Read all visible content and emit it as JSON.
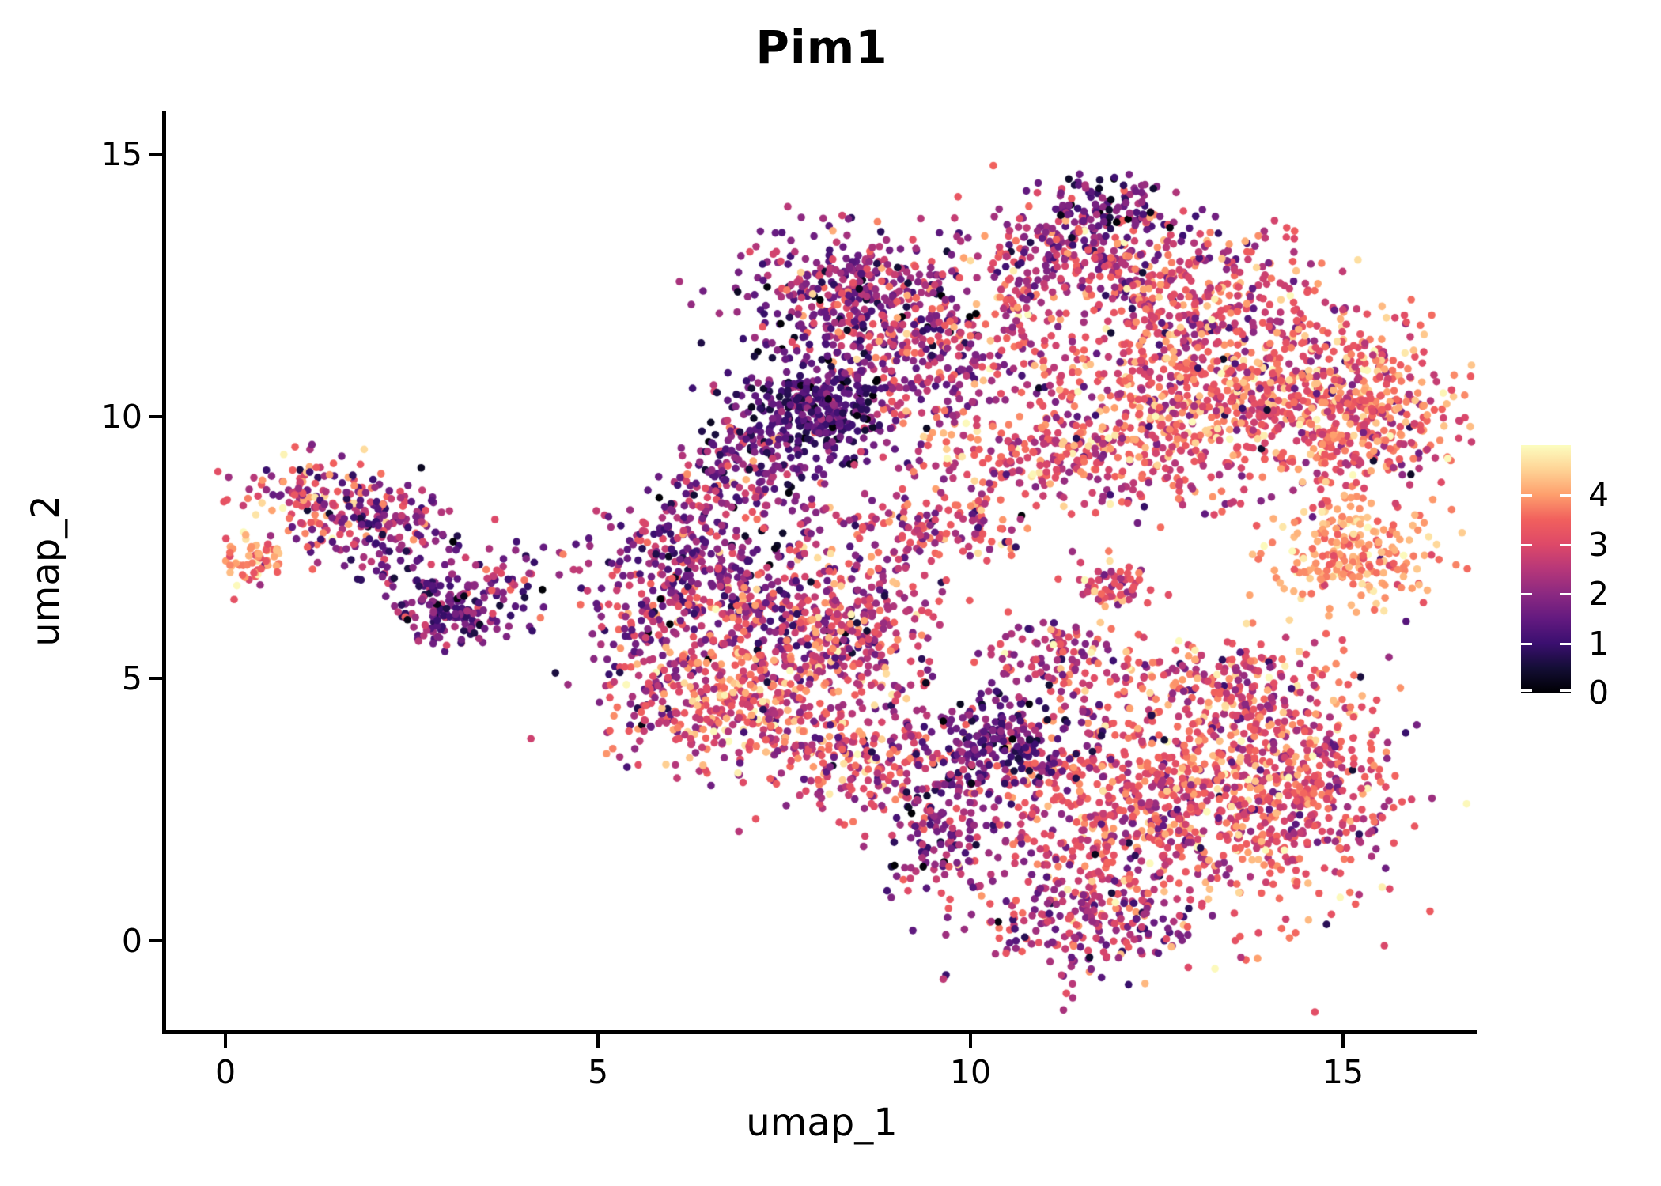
{
  "chart_data": {
    "type": "scatter",
    "title": "Pim1",
    "xlabel": "umap_1",
    "ylabel": "umap_2",
    "x_ticks": [
      0,
      5,
      10,
      15
    ],
    "y_ticks": [
      0,
      5,
      10,
      15
    ],
    "xlim": [
      -0.8,
      16.8
    ],
    "ylim": [
      -1.8,
      15.6
    ],
    "grid": false,
    "background": "#ffffff",
    "axis_color": "#000000",
    "text_color": "#000000",
    "point_radius_px": 4.8,
    "n_points_total": 7800,
    "seed": 20240601,
    "speckle_fraction": 0.035,
    "speckle_range": [
      0.3,
      4.3
    ],
    "colorbar": {
      "position": "right",
      "vmin": 0,
      "vmax": 5,
      "label_values": [
        0,
        1,
        2,
        3,
        4
      ],
      "colormap": "magma",
      "tick_color": "#ffffff",
      "stops": [
        [
          0.0,
          "#000004"
        ],
        [
          0.1,
          "#140e36"
        ],
        [
          0.2,
          "#3b0f70"
        ],
        [
          0.3,
          "#641a80"
        ],
        [
          0.4,
          "#8c2981"
        ],
        [
          0.5,
          "#b73779"
        ],
        [
          0.6,
          "#de4968"
        ],
        [
          0.7,
          "#f1605d"
        ],
        [
          0.8,
          "#fe9f6d"
        ],
        [
          0.9,
          "#fed395"
        ],
        [
          1.0,
          "#fcfdbf"
        ]
      ]
    },
    "clusters": [
      {
        "name": "left-island-upper-lobe",
        "cx": 1.25,
        "cy": 8.55,
        "sx": 0.5,
        "sy": 0.42,
        "n": 130,
        "mean": 3.0,
        "sd": 1.0
      },
      {
        "name": "left-island-mid",
        "cx": 2.2,
        "cy": 7.9,
        "sx": 0.55,
        "sy": 0.45,
        "n": 160,
        "mean": 1.9,
        "sd": 0.8
      },
      {
        "name": "left-island-orange-tip",
        "cx": 0.45,
        "cy": 7.3,
        "sx": 0.28,
        "sy": 0.25,
        "n": 60,
        "mean": 3.9,
        "sd": 0.6
      },
      {
        "name": "left-island-dark-lower",
        "cx": 3.0,
        "cy": 6.35,
        "sx": 0.48,
        "sy": 0.38,
        "n": 170,
        "mean": 1.5,
        "sd": 0.7
      },
      {
        "name": "left-island-right-tail",
        "cx": 3.9,
        "cy": 7.0,
        "sx": 0.42,
        "sy": 0.3,
        "n": 30,
        "mean": 2.0,
        "sd": 1.0
      },
      {
        "name": "stray-dots-center-left",
        "cx": 5.05,
        "cy": 7.0,
        "sx": 0.3,
        "sy": 0.4,
        "n": 12,
        "mean": 2.2,
        "sd": 1.0
      },
      {
        "name": "mid-left-edge",
        "cx": 5.7,
        "cy": 5.2,
        "sx": 0.4,
        "sy": 0.85,
        "n": 140,
        "mean": 2.6,
        "sd": 1.0
      },
      {
        "name": "mid-core-upper",
        "cx": 7.3,
        "cy": 6.5,
        "sx": 0.8,
        "sy": 0.6,
        "n": 300,
        "mean": 2.4,
        "sd": 1.0
      },
      {
        "name": "mid-core-right",
        "cx": 8.6,
        "cy": 5.9,
        "sx": 0.5,
        "sy": 0.7,
        "n": 200,
        "mean": 2.7,
        "sd": 0.9
      },
      {
        "name": "mid-core-lower-orange",
        "cx": 7.2,
        "cy": 4.6,
        "sx": 0.85,
        "sy": 0.75,
        "n": 420,
        "mean": 3.2,
        "sd": 0.9
      },
      {
        "name": "mid-bottom-tail",
        "cx": 8.5,
        "cy": 3.4,
        "sx": 0.6,
        "sy": 0.55,
        "n": 180,
        "mean": 3.0,
        "sd": 1.0
      },
      {
        "name": "mid-top-bridge",
        "cx": 6.7,
        "cy": 8.4,
        "sx": 0.5,
        "sy": 0.45,
        "n": 90,
        "mean": 2.1,
        "sd": 0.9
      },
      {
        "name": "mid-upperleft-purple-arm",
        "cx": 6.1,
        "cy": 7.3,
        "sx": 0.5,
        "sy": 0.55,
        "n": 180,
        "mean": 1.9,
        "sd": 0.8
      },
      {
        "name": "mid-arm-northeast",
        "cx": 9.3,
        "cy": 7.9,
        "sx": 0.8,
        "sy": 0.45,
        "n": 150,
        "mean": 2.8,
        "sd": 0.9
      },
      {
        "name": "topmid-upper-lobe",
        "cx": 8.3,
        "cy": 12.4,
        "sx": 0.72,
        "sy": 0.62,
        "n": 330,
        "mean": 2.0,
        "sd": 0.9
      },
      {
        "name": "topmid-right-side",
        "cx": 9.25,
        "cy": 11.1,
        "sx": 0.6,
        "sy": 0.85,
        "n": 280,
        "mean": 2.4,
        "sd": 0.9
      },
      {
        "name": "topmid-left-sparse",
        "cx": 6.95,
        "cy": 9.4,
        "sx": 0.45,
        "sy": 0.6,
        "n": 100,
        "mean": 1.8,
        "sd": 0.8
      },
      {
        "name": "topmid-dark-core",
        "cx": 7.9,
        "cy": 10.1,
        "sx": 0.52,
        "sy": 0.55,
        "n": 380,
        "mean": 1.2,
        "sd": 0.6
      },
      {
        "name": "topright-gap-sparse",
        "cx": 10.6,
        "cy": 11.9,
        "sx": 0.5,
        "sy": 0.85,
        "n": 70,
        "mean": 3.0,
        "sd": 0.9
      },
      {
        "name": "topright-upper-band",
        "cx": 11.6,
        "cy": 13.2,
        "sx": 0.9,
        "sy": 0.5,
        "n": 280,
        "mean": 2.4,
        "sd": 0.9
      },
      {
        "name": "topright-diagonal-band",
        "cx": 13.1,
        "cy": 12.2,
        "sx": 1.0,
        "sy": 0.7,
        "n": 300,
        "mean": 3.0,
        "sd": 0.8
      },
      {
        "name": "topright-main-mass",
        "cx": 13.4,
        "cy": 10.4,
        "sx": 1.3,
        "sy": 0.78,
        "n": 800,
        "mean": 3.3,
        "sd": 0.8
      },
      {
        "name": "topright-lower-arm",
        "cx": 11.2,
        "cy": 9.2,
        "sx": 1.0,
        "sy": 0.55,
        "n": 280,
        "mean": 3.0,
        "sd": 0.9
      },
      {
        "name": "topright-right-dense",
        "cx": 15.3,
        "cy": 9.9,
        "sx": 0.5,
        "sy": 0.8,
        "n": 300,
        "mean": 3.4,
        "sd": 0.7
      },
      {
        "name": "right-light-cluster",
        "cx": 15.1,
        "cy": 7.4,
        "sx": 0.55,
        "sy": 0.5,
        "n": 220,
        "mean": 4.0,
        "sd": 0.5
      },
      {
        "name": "right-small-clump",
        "cx": 11.85,
        "cy": 6.8,
        "sx": 0.32,
        "sy": 0.27,
        "n": 60,
        "mean": 3.0,
        "sd": 0.8
      },
      {
        "name": "topright-top-dark-blob",
        "cx": 11.75,
        "cy": 14.05,
        "sx": 0.42,
        "sy": 0.28,
        "n": 80,
        "mean": 1.3,
        "sd": 0.8
      },
      {
        "name": "bottom-core",
        "cx": 12.2,
        "cy": 2.6,
        "sx": 1.1,
        "sy": 1.0,
        "n": 700,
        "mean": 3.0,
        "sd": 0.8
      },
      {
        "name": "bottom-right-dense",
        "cx": 14.3,
        "cy": 2.9,
        "sx": 0.75,
        "sy": 1.0,
        "n": 450,
        "mean": 3.2,
        "sd": 0.8
      },
      {
        "name": "bottom-upper-arm",
        "cx": 13.4,
        "cy": 4.9,
        "sx": 0.9,
        "sy": 0.5,
        "n": 250,
        "mean": 3.1,
        "sd": 0.8
      },
      {
        "name": "bottom-mid-arm",
        "cx": 11.2,
        "cy": 5.4,
        "sx": 0.5,
        "sy": 0.35,
        "n": 100,
        "mean": 2.6,
        "sd": 0.9
      },
      {
        "name": "bottom-tail",
        "cx": 11.6,
        "cy": 0.3,
        "sx": 0.85,
        "sy": 0.5,
        "n": 220,
        "mean": 2.4,
        "sd": 0.9
      },
      {
        "name": "bottom-left-edge",
        "cx": 9.6,
        "cy": 2.2,
        "sx": 0.45,
        "sy": 0.8,
        "n": 160,
        "mean": 1.9,
        "sd": 0.8
      },
      {
        "name": "bottom-dark-blob",
        "cx": 10.3,
        "cy": 3.8,
        "sx": 0.55,
        "sy": 0.5,
        "n": 220,
        "mean": 1.3,
        "sd": 0.7
      }
    ]
  }
}
